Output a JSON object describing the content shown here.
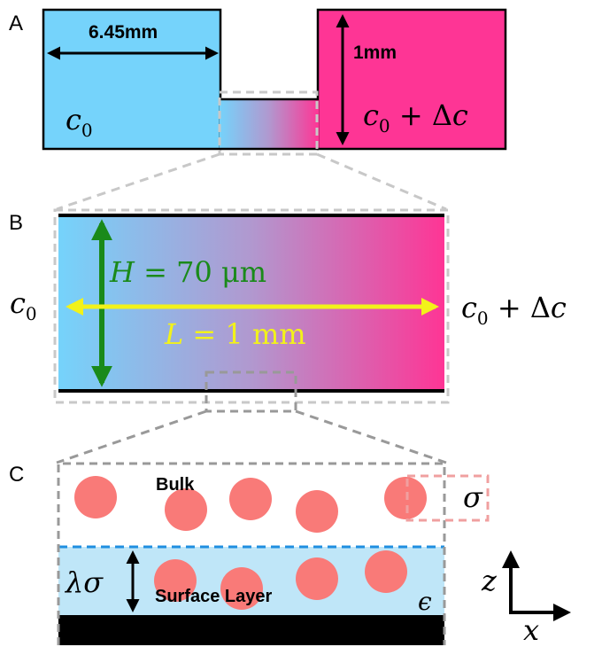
{
  "panels": {
    "A": {
      "label": "A",
      "width_label": "6.45mm",
      "height_label": "1mm",
      "left_conc": "c",
      "left_conc_sub": "0",
      "right_conc_c": "c",
      "right_conc_sub": "0",
      "right_conc_rest": " + Δ",
      "right_conc_c2": "c"
    },
    "B": {
      "label": "B",
      "height_eq_var": "H",
      "height_eq_rest": " = 70 μm",
      "length_eq_var": "L",
      "length_eq_rest": " = 1 mm",
      "left_conc": "c",
      "left_conc_sub": "0",
      "right_conc_c": "c",
      "right_conc_sub": "0",
      "right_conc_rest": " + Δ",
      "right_conc_c2": "c"
    },
    "C": {
      "label": "C",
      "bulk_label": "Bulk",
      "surface_label": "Surface Layer",
      "sigma": "σ",
      "lambda_sigma": "λσ",
      "epsilon": "ϵ",
      "axis_z": "z",
      "axis_x": "x"
    }
  },
  "colors": {
    "reservoir_left": "#75d3fb",
    "reservoir_right": "#fe3595",
    "bulk_particle": "#f97a78",
    "surface_layer": "#bfe6f8",
    "height_arrow": "#1a8a1a",
    "length_arrow": "#f2f21a",
    "dashed_gray": "#b0b0b0",
    "dashed_pink": "#f0a0a0",
    "dashed_blue": "#1f8fe0"
  }
}
